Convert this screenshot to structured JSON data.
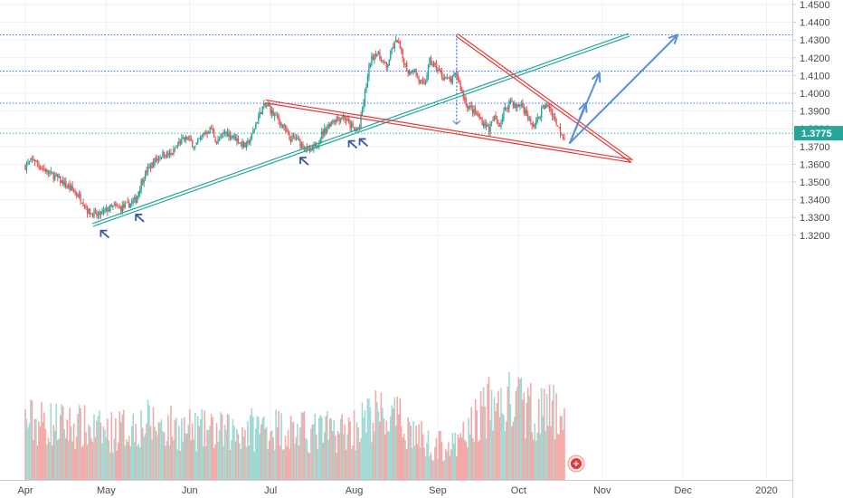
{
  "chart_data": {
    "type": "candlestick",
    "instrument_last_price": "1.3775",
    "colors": {
      "up": "#26a69a",
      "down": "#ef5350",
      "volume_up": "#9fd9d2",
      "volume_down": "#f4a9a7",
      "grid": "#eef1f6",
      "price_badge": "#26a69a",
      "last_price_line": "#26a69a",
      "horizontal_levels": "#2962ff",
      "triangle_lines": "#e53935",
      "trend_channel": "#26a69a",
      "arrows": "#5b8fd6",
      "markers": "#3d5a9c",
      "measure_line": "#5b8fd6",
      "add_button": "#e53935"
    },
    "y_axis": {
      "min": 1.3175,
      "max": 1.455,
      "ticks": [
        "1.4500",
        "1.4400",
        "1.4300",
        "1.4200",
        "1.4100",
        "1.4000",
        "1.3900",
        "1.3800",
        "1.3700",
        "1.3600",
        "1.3500",
        "1.3400",
        "1.3300",
        "1.3200"
      ]
    },
    "x_axis": {
      "range_days": [
        0,
        266
      ],
      "ticks": [
        {
          "label": "Apr",
          "day": 0
        },
        {
          "label": "May",
          "day": 30
        },
        {
          "label": "Jun",
          "day": 61
        },
        {
          "label": "Jul",
          "day": 91
        },
        {
          "label": "Aug",
          "day": 122
        },
        {
          "label": "Sep",
          "day": 153
        },
        {
          "label": "Oct",
          "day": 183
        },
        {
          "label": "Nov",
          "day": 214
        },
        {
          "label": "Dec",
          "day": 244
        },
        {
          "label": "2020",
          "day": 275
        }
      ]
    },
    "price_path": [
      [
        0,
        1.359
      ],
      [
        3,
        1.363
      ],
      [
        6,
        1.358
      ],
      [
        9,
        1.355
      ],
      [
        12,
        1.352
      ],
      [
        15,
        1.348
      ],
      [
        18,
        1.345
      ],
      [
        21,
        1.34
      ],
      [
        23,
        1.334
      ],
      [
        25,
        1.332
      ],
      [
        27,
        1.331
      ],
      [
        29,
        1.333
      ],
      [
        31,
        1.335
      ],
      [
        33,
        1.336
      ],
      [
        35,
        1.335
      ],
      [
        38,
        1.337
      ],
      [
        41,
        1.34
      ],
      [
        43,
        1.35
      ],
      [
        45,
        1.356
      ],
      [
        48,
        1.362
      ],
      [
        51,
        1.366
      ],
      [
        54,
        1.365
      ],
      [
        57,
        1.372
      ],
      [
        60,
        1.375
      ],
      [
        63,
        1.37
      ],
      [
        66,
        1.377
      ],
      [
        69,
        1.38
      ],
      [
        71,
        1.372
      ],
      [
        74,
        1.378
      ],
      [
        77,
        1.376
      ],
      [
        80,
        1.372
      ],
      [
        82,
        1.37
      ],
      [
        84,
        1.376
      ],
      [
        86,
        1.385
      ],
      [
        88,
        1.392
      ],
      [
        90,
        1.393
      ],
      [
        92,
        1.388
      ],
      [
        94,
        1.385
      ],
      [
        96,
        1.38
      ],
      [
        98,
        1.374
      ],
      [
        100,
        1.375
      ],
      [
        102,
        1.372
      ],
      [
        104,
        1.369
      ],
      [
        106,
        1.367
      ],
      [
        108,
        1.371
      ],
      [
        110,
        1.377
      ],
      [
        112,
        1.381
      ],
      [
        114,
        1.385
      ],
      [
        116,
        1.386
      ],
      [
        118,
        1.387
      ],
      [
        120,
        1.383
      ],
      [
        122,
        1.379
      ],
      [
        124,
        1.381
      ],
      [
        126,
        1.4
      ],
      [
        128,
        1.418
      ],
      [
        130,
        1.423
      ],
      [
        132,
        1.42
      ],
      [
        134,
        1.414
      ],
      [
        136,
        1.425
      ],
      [
        138,
        1.43
      ],
      [
        140,
        1.42
      ],
      [
        142,
        1.412
      ],
      [
        144,
        1.414
      ],
      [
        146,
        1.407
      ],
      [
        148,
        1.404
      ],
      [
        150,
        1.418
      ],
      [
        152,
        1.415
      ],
      [
        154,
        1.411
      ],
      [
        156,
        1.408
      ],
      [
        158,
        1.407
      ],
      [
        160,
        1.411
      ],
      [
        162,
        1.4
      ],
      [
        164,
        1.393
      ],
      [
        166,
        1.39
      ],
      [
        168,
        1.387
      ],
      [
        170,
        1.383
      ],
      [
        172,
        1.38
      ],
      [
        174,
        1.386
      ],
      [
        176,
        1.382
      ],
      [
        178,
        1.391
      ],
      [
        180,
        1.396
      ],
      [
        182,
        1.392
      ],
      [
        184,
        1.394
      ],
      [
        186,
        1.388
      ],
      [
        188,
        1.381
      ],
      [
        190,
        1.385
      ],
      [
        192,
        1.392
      ],
      [
        194,
        1.393
      ],
      [
        196,
        1.387
      ],
      [
        198,
        1.38
      ],
      [
        200,
        1.375
      ]
    ],
    "volume_scale_max": 100,
    "volume_profile": [
      [
        0,
        50
      ],
      [
        20,
        45
      ],
      [
        30,
        40
      ],
      [
        45,
        48
      ],
      [
        60,
        42
      ],
      [
        75,
        40
      ],
      [
        90,
        45
      ],
      [
        105,
        40
      ],
      [
        120,
        42
      ],
      [
        130,
        55
      ],
      [
        140,
        48
      ],
      [
        150,
        30
      ],
      [
        160,
        28
      ],
      [
        170,
        60
      ],
      [
        180,
        65
      ],
      [
        190,
        58
      ],
      [
        200,
        55
      ]
    ],
    "horizontal_levels": [
      1.4329,
      1.4125,
      1.3944,
      1.3775
    ],
    "triangle": {
      "upper_line": [
        [
          160,
          1.4329
        ],
        [
          225,
          1.3618
        ]
      ],
      "lower_line": [
        [
          89,
          1.3954
        ],
        [
          225,
          1.3618
        ]
      ]
    },
    "trend_channel": [
      [
        25,
        1.3258
      ],
      [
        224,
        1.4329
      ]
    ],
    "measure_line": [
      [
        160,
        1.4329
      ],
      [
        160,
        1.3825
      ]
    ],
    "projection_arrows": [
      [
        [
          202,
          1.372
        ],
        [
          208,
          1.3945
        ]
      ],
      [
        [
          202,
          1.372
        ],
        [
          213,
          1.4115
        ]
      ],
      [
        [
          202,
          1.372
        ],
        [
          242,
          1.4329
        ]
      ]
    ],
    "touch_markers": [
      [
        29,
        1.3247
      ],
      [
        42,
        1.3337
      ],
      [
        103,
        1.3658
      ],
      [
        121,
        1.3752
      ],
      [
        125,
        1.3763
      ]
    ]
  },
  "buttons": {
    "add_symbol": "+"
  }
}
